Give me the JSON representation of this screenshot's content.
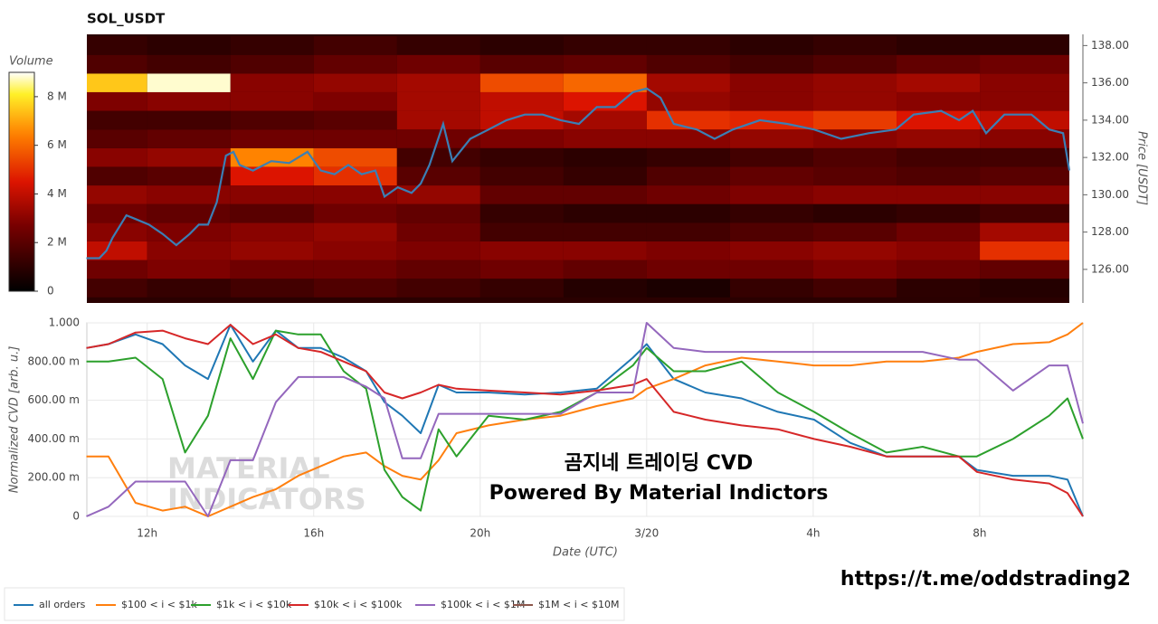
{
  "chart_data": [
    {
      "type": "heatmap",
      "title": "SOL_USDT",
      "y_label": "Price [USDT]",
      "colorbar_label": "Volume",
      "x_bins": [
        10.55,
        12,
        14,
        16,
        18,
        20,
        22,
        24,
        26,
        28,
        30,
        32,
        34.15
      ],
      "y_bins": [
        124.5,
        125.5,
        126.5,
        127.5,
        128.5,
        129.5,
        130.5,
        131.5,
        132.5,
        133.5,
        134.5,
        135.5,
        136.5,
        137.5,
        138.5
      ],
      "z": [
        [
          1.5,
          1.2,
          1.5,
          1.8,
          1.5,
          1.2,
          0.8,
          0.6,
          1.2,
          1.5,
          1.0,
          0.8
        ],
        [
          2.5,
          2.8,
          2.5,
          2.5,
          2.2,
          2.5,
          2.2,
          2.5,
          2.5,
          2.8,
          2.5,
          2.2
        ],
        [
          4.0,
          3.0,
          3.2,
          3.0,
          2.8,
          3.0,
          3.0,
          2.8,
          3.0,
          3.2,
          3.0,
          5.0
        ],
        [
          3.0,
          2.8,
          3.0,
          3.2,
          2.5,
          1.5,
          1.5,
          1.5,
          1.8,
          2.0,
          2.5,
          3.5
        ],
        [
          2.5,
          2.2,
          2.0,
          2.5,
          2.2,
          1.2,
          1.0,
          1.0,
          1.2,
          1.0,
          1.2,
          1.5
        ],
        [
          3.2,
          3.0,
          3.0,
          3.0,
          3.2,
          2.2,
          2.2,
          2.5,
          2.8,
          3.0,
          3.0,
          3.0
        ],
        [
          1.8,
          2.0,
          4.5,
          5.0,
          2.0,
          1.5,
          1.2,
          1.8,
          2.2,
          2.0,
          1.8,
          2.0
        ],
        [
          3.0,
          3.2,
          6.5,
          5.5,
          1.5,
          1.2,
          1.0,
          1.2,
          1.5,
          1.8,
          1.5,
          1.5
        ],
        [
          2.0,
          2.2,
          2.5,
          2.5,
          2.5,
          2.8,
          3.0,
          3.0,
          3.2,
          3.0,
          3.2,
          3.0
        ],
        [
          1.5,
          1.5,
          1.8,
          2.0,
          3.5,
          4.0,
          3.5,
          5.0,
          4.8,
          5.2,
          4.5,
          4.0
        ],
        [
          2.8,
          3.0,
          3.0,
          2.8,
          3.5,
          4.0,
          4.5,
          3.2,
          3.0,
          3.2,
          3.0,
          3.0
        ],
        [
          7.5,
          8.8,
          3.0,
          3.2,
          3.5,
          5.5,
          6.0,
          3.5,
          3.0,
          3.2,
          3.5,
          3.0
        ],
        [
          1.8,
          1.5,
          1.8,
          2.2,
          2.5,
          2.0,
          2.2,
          1.8,
          1.5,
          1.8,
          2.2,
          2.5
        ],
        [
          1.2,
          1.0,
          1.2,
          1.5,
          1.2,
          1.0,
          1.2,
          1.2,
          1.0,
          1.2,
          1.0,
          1.0
        ]
      ],
      "zlim": [
        0,
        9
      ],
      "zticks": [
        0,
        {
          "value": 2,
          "label": "2 M"
        },
        {
          "value": 4,
          "label": "4 M"
        },
        {
          "value": 6,
          "label": "6 M"
        },
        {
          "value": 8,
          "label": "8 M"
        }
      ],
      "xlim": [
        10.55,
        34.15
      ],
      "ylim": [
        124.2,
        138.6
      ],
      "yticks": [
        {
          "value": 126,
          "label": "126.00"
        },
        {
          "value": 128,
          "label": "128.00"
        },
        {
          "value": 130,
          "label": "130.00"
        },
        {
          "value": 132,
          "label": "132.00"
        },
        {
          "value": 134,
          "label": "134.00"
        },
        {
          "value": 136,
          "label": "136.00"
        },
        {
          "value": 138,
          "label": "138.00"
        }
      ],
      "line": {
        "color": "#3b7fb5",
        "x": [
          10.54,
          10.85,
          11.02,
          11.17,
          11.5,
          11.72,
          12.04,
          12.37,
          12.7,
          13.02,
          13.24,
          13.46,
          13.67,
          13.89,
          14.07,
          14.22,
          14.54,
          14.98,
          15.41,
          15.85,
          16.17,
          16.5,
          16.83,
          17.15,
          17.48,
          17.7,
          18.02,
          18.35,
          18.57,
          18.78,
          19.11,
          19.33,
          19.76,
          20.2,
          20.63,
          21.07,
          21.5,
          21.93,
          22.37,
          22.8,
          23.24,
          23.67,
          24,
          24.33,
          24.65,
          25.2,
          25.63,
          26.07,
          26.72,
          27.37,
          28.02,
          28.67,
          29.33,
          29.98,
          30.41,
          31.07,
          31.5,
          31.83,
          32.15,
          32.59,
          33.24,
          33.67,
          34,
          34.15
        ],
        "y": [
          126.6,
          126.6,
          127,
          127.7,
          128.9,
          128.7,
          128.4,
          127.9,
          127.3,
          127.9,
          128.4,
          128.4,
          129.6,
          132.1,
          132.3,
          131.6,
          131.3,
          131.8,
          131.7,
          132.3,
          131.3,
          131.1,
          131.6,
          131.1,
          131.3,
          129.9,
          130.4,
          130.1,
          130.6,
          131.6,
          133.8,
          131.8,
          133,
          133.5,
          134,
          134.3,
          134.3,
          134,
          133.8,
          134.7,
          134.7,
          135.5,
          135.7,
          135.2,
          133.8,
          133.5,
          133,
          133.5,
          134,
          133.8,
          133.5,
          133,
          133.3,
          133.5,
          134.3,
          134.5,
          134,
          134.5,
          133.3,
          134.3,
          134.3,
          133.5,
          133.3,
          131.3
        ]
      }
    },
    {
      "type": "line",
      "y_label": "Normalized CVD [arb. u.]",
      "x_label": "Date (UTC)",
      "xlim": [
        10.55,
        34.48
      ],
      "ylim": [
        0,
        1
      ],
      "xticks": [
        {
          "value": 12,
          "label": "12h"
        },
        {
          "value": 16,
          "label": "16h"
        },
        {
          "value": 20,
          "label": "20h"
        },
        {
          "value": 24,
          "label": "3/20"
        },
        {
          "value": 28,
          "label": "4h"
        },
        {
          "value": 32,
          "label": "8h"
        }
      ],
      "yticks": [
        0,
        {
          "value": 0.2,
          "label": "200.00 m"
        },
        {
          "value": 0.4,
          "label": "400.00 m"
        },
        {
          "value": 0.6,
          "label": "600.00 m"
        },
        {
          "value": 0.8,
          "label": "800.00 m"
        },
        {
          "value": 1,
          "label": "1.000"
        }
      ],
      "grid": true,
      "annotations": [
        "곰지네 트레이딩 CVD",
        "Powered By Material Indictors"
      ],
      "x": [
        10.54,
        11.07,
        11.72,
        12.37,
        12.91,
        13.46,
        14.0,
        14.54,
        15.09,
        15.63,
        16.17,
        16.72,
        17.26,
        17.7,
        18.13,
        18.57,
        19.0,
        19.43,
        20.2,
        21.07,
        21.93,
        22.8,
        23.67,
        24.0,
        24.65,
        25.41,
        26.28,
        27.15,
        28.02,
        28.89,
        29.76,
        30.63,
        31.5,
        31.93,
        32.8,
        33.67,
        34.11,
        34.48
      ],
      "series": [
        {
          "name": "all orders",
          "color": "#1f77b4",
          "values": [
            0.87,
            0.89,
            0.94,
            0.89,
            0.78,
            0.71,
            0.99,
            0.8,
            0.96,
            0.87,
            0.87,
            0.82,
            0.75,
            0.59,
            0.52,
            0.43,
            0.68,
            0.64,
            0.64,
            0.63,
            0.64,
            0.66,
            0.82,
            0.89,
            0.71,
            0.64,
            0.61,
            0.54,
            0.5,
            0.38,
            0.31,
            0.31,
            0.31,
            0.24,
            0.21,
            0.21,
            0.19,
            0
          ]
        },
        {
          "name": "$100 < i < $1k",
          "color": "#ff7f0e",
          "values": [
            0.31,
            0.31,
            0.07,
            0.03,
            0.05,
            0,
            0.05,
            0.1,
            0.14,
            0.21,
            0.26,
            0.31,
            0.33,
            0.26,
            0.21,
            0.19,
            0.29,
            0.43,
            0.47,
            0.5,
            0.52,
            0.57,
            0.61,
            0.66,
            0.71,
            0.78,
            0.82,
            0.8,
            0.78,
            0.78,
            0.8,
            0.8,
            0.82,
            0.85,
            0.89,
            0.9,
            0.94,
            1.0
          ]
        },
        {
          "name": "$1k < i < $10k",
          "color": "#2ca02c",
          "values": [
            0.8,
            0.8,
            0.82,
            0.71,
            0.33,
            0.52,
            0.92,
            0.71,
            0.96,
            0.94,
            0.94,
            0.75,
            0.66,
            0.24,
            0.1,
            0.03,
            0.45,
            0.31,
            0.52,
            0.5,
            0.54,
            0.64,
            0.78,
            0.87,
            0.75,
            0.75,
            0.8,
            0.64,
            0.54,
            0.43,
            0.33,
            0.36,
            0.31,
            0.31,
            0.4,
            0.52,
            0.61,
            0.4
          ]
        },
        {
          "name": "$10k < i < $100k",
          "color": "#d62728",
          "values": [
            0.87,
            0.89,
            0.95,
            0.96,
            0.92,
            0.89,
            0.99,
            0.89,
            0.94,
            0.87,
            0.85,
            0.8,
            0.75,
            0.64,
            0.61,
            0.64,
            0.68,
            0.66,
            0.65,
            0.64,
            0.63,
            0.65,
            0.68,
            0.71,
            0.54,
            0.5,
            0.47,
            0.45,
            0.4,
            0.36,
            0.31,
            0.31,
            0.31,
            0.23,
            0.19,
            0.17,
            0.12,
            0
          ]
        },
        {
          "name": "$100k < i < $1M",
          "color": "#9467bd",
          "values": [
            0,
            0.05,
            0.18,
            0.18,
            0.18,
            0,
            0.29,
            0.29,
            0.59,
            0.72,
            0.72,
            0.72,
            0.67,
            0.61,
            0.3,
            0.3,
            0.53,
            0.53,
            0.53,
            0.53,
            0.53,
            0.64,
            0.64,
            1.0,
            0.87,
            0.85,
            0.85,
            0.85,
            0.85,
            0.85,
            0.85,
            0.85,
            0.81,
            0.81,
            0.65,
            0.78,
            0.78,
            0.48
          ]
        },
        {
          "name": "$1M < i < $10M",
          "color": "#8c564b",
          "values": [
            null,
            null,
            null,
            null,
            null,
            null,
            null,
            null,
            null,
            null,
            null,
            null,
            null,
            null,
            null,
            null,
            null,
            null,
            null,
            null,
            null,
            null,
            null,
            null,
            null,
            null,
            null,
            null,
            null,
            null,
            null,
            null,
            null,
            null,
            null,
            null,
            null,
            null
          ]
        }
      ]
    }
  ],
  "watermark": [
    "MATERIAL",
    "INDICATORS"
  ],
  "footer_url": "https://t.me/oddstrading2"
}
